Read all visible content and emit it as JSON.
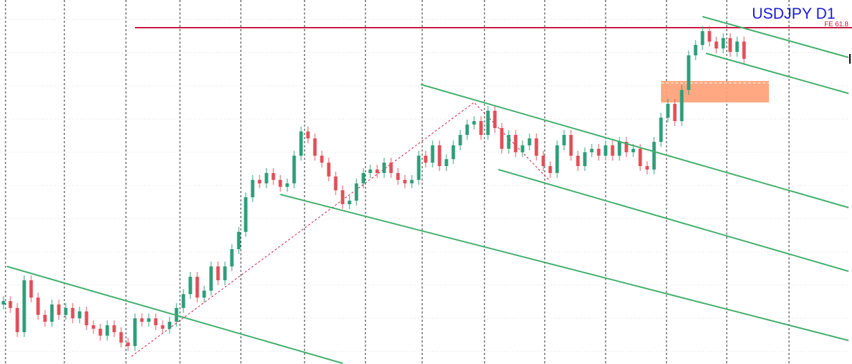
{
  "chart_data": {
    "type": "candlestick",
    "title": "USDJPY D1",
    "annotation": "FE 61.8",
    "ylim": [
      0,
      526
    ],
    "up_color": "#2e9e7a",
    "down_color": "#e0505a",
    "open": [
      86,
      91,
      81,
      46,
      121,
      96,
      71,
      61,
      86,
      71,
      81,
      66,
      76,
      56,
      51,
      41,
      56,
      46,
      31,
      26,
      66,
      61,
      66,
      56,
      51,
      61,
      81,
      101,
      126,
      96,
      106,
      141,
      121,
      141,
      166,
      191,
      241,
      266,
      261,
      276,
      266,
      256,
      261,
      301,
      336,
      326,
      301,
      291,
      271,
      251,
      231,
      236,
      261,
      276,
      281,
      276,
      291,
      276,
      266,
      261,
      266,
      301,
      291,
      316,
      286,
      296,
      316,
      331,
      346,
      351,
      331,
      366,
      341,
      311,
      331,
      306,
      316,
      326,
      301,
      286,
      276,
      316,
      331,
      301,
      286,
      306,
      311,
      301,
      316,
      301,
      321,
      306,
      311,
      286,
      281,
      321,
      356,
      376,
      351,
      396,
      446,
      461,
      481,
      466,
      456,
      471,
      451,
      466
    ],
    "high": [
      98,
      98,
      88,
      128,
      128,
      103,
      78,
      93,
      93,
      88,
      88,
      83,
      83,
      63,
      58,
      63,
      63,
      53,
      38,
      73,
      73,
      73,
      73,
      63,
      68,
      88,
      108,
      133,
      133,
      113,
      148,
      148,
      148,
      173,
      198,
      248,
      273,
      273,
      283,
      283,
      273,
      268,
      308,
      343,
      343,
      333,
      308,
      298,
      278,
      258,
      243,
      268,
      283,
      288,
      288,
      298,
      298,
      283,
      273,
      273,
      308,
      308,
      323,
      323,
      303,
      323,
      338,
      353,
      358,
      358,
      373,
      373,
      348,
      338,
      338,
      323,
      333,
      333,
      308,
      293,
      323,
      338,
      338,
      308,
      313,
      318,
      318,
      323,
      323,
      328,
      328,
      318,
      318,
      293,
      328,
      363,
      383,
      383,
      403,
      453,
      468,
      488,
      488,
      473,
      478,
      478,
      473,
      473
    ],
    "low": [
      79,
      74,
      39,
      39,
      89,
      64,
      54,
      54,
      64,
      64,
      59,
      59,
      49,
      44,
      34,
      34,
      39,
      24,
      19,
      19,
      54,
      54,
      49,
      44,
      44,
      54,
      74,
      94,
      89,
      89,
      99,
      114,
      114,
      134,
      159,
      184,
      234,
      254,
      254,
      259,
      249,
      249,
      254,
      294,
      319,
      294,
      284,
      264,
      244,
      224,
      224,
      229,
      254,
      269,
      269,
      269,
      269,
      259,
      254,
      254,
      259,
      284,
      284,
      279,
      279,
      289,
      309,
      324,
      339,
      324,
      324,
      334,
      304,
      304,
      299,
      299,
      309,
      294,
      279,
      269,
      269,
      309,
      294,
      279,
      279,
      299,
      294,
      294,
      294,
      294,
      299,
      299,
      279,
      274,
      274,
      314,
      349,
      344,
      344,
      389,
      439,
      454,
      459,
      449,
      449,
      444,
      444,
      434
    ],
    "close": [
      91,
      81,
      46,
      121,
      96,
      71,
      61,
      86,
      71,
      81,
      66,
      76,
      56,
      51,
      41,
      56,
      46,
      31,
      26,
      66,
      61,
      66,
      56,
      51,
      61,
      81,
      101,
      126,
      96,
      106,
      141,
      121,
      141,
      166,
      191,
      241,
      266,
      261,
      276,
      266,
      256,
      261,
      301,
      336,
      326,
      301,
      291,
      271,
      251,
      231,
      236,
      261,
      276,
      281,
      276,
      291,
      276,
      266,
      261,
      266,
      301,
      291,
      316,
      286,
      296,
      316,
      331,
      346,
      351,
      331,
      366,
      341,
      311,
      331,
      306,
      316,
      326,
      301,
      286,
      276,
      316,
      331,
      301,
      286,
      306,
      311,
      301,
      316,
      301,
      321,
      306,
      311,
      286,
      281,
      321,
      356,
      376,
      351,
      396,
      446,
      461,
      481,
      466,
      456,
      471,
      451,
      466,
      441
    ]
  }
}
